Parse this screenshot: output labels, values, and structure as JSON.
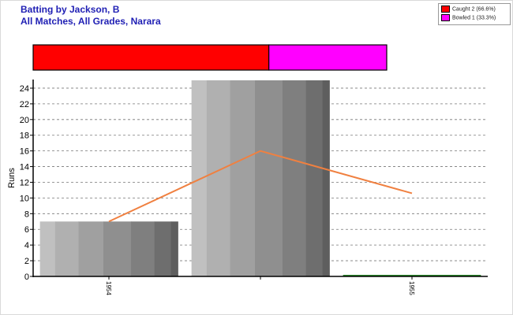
{
  "title_line1": "Batting by Jackson, B",
  "title_line2": "All Matches, All Grades, Narara",
  "legend": [
    {
      "label": "Caught 2 (66.6%)",
      "color": "#ff0000"
    },
    {
      "label": "Bowled 1 (33.3%)",
      "color": "#ff00ff"
    }
  ],
  "chart_data": [
    {
      "type": "bar",
      "title": "",
      "categories": [
        "1954",
        "",
        "1955"
      ],
      "values": [
        7,
        25,
        0.2
      ],
      "trend_line": {
        "values": [
          7,
          16,
          10.6
        ],
        "color": "#f08040"
      },
      "xlabel": "",
      "ylabel": "Runs",
      "ylim": [
        0,
        25
      ],
      "yticks": [
        0,
        2,
        4,
        6,
        8,
        10,
        12,
        14,
        16,
        18,
        20,
        22,
        24
      ],
      "grid": true,
      "legend": "top-right"
    },
    {
      "type": "bar",
      "stacked": true,
      "orientation": "horizontal",
      "series": [
        {
          "name": "Caught",
          "value": 2,
          "percent": 66.6,
          "color": "#ff0000"
        },
        {
          "name": "Bowled",
          "value": 1,
          "percent": 33.3,
          "color": "#ff00ff"
        }
      ]
    }
  ]
}
